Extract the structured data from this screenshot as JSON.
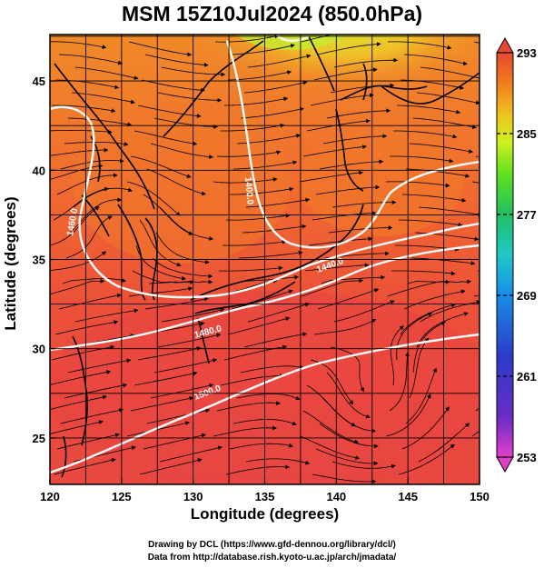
{
  "title": "MSM 15Z10Jul2024 (850.0hPa)",
  "x_axis": {
    "label": "Longitude (degrees)",
    "range": [
      120,
      150
    ],
    "ticks": [
      "120",
      "125",
      "130",
      "135",
      "140",
      "145",
      "150"
    ]
  },
  "y_axis": {
    "label": "Latitude  (degrees)",
    "range": [
      22.4,
      47.6
    ],
    "ticks": [
      "25",
      "30",
      "35",
      "40",
      "45"
    ]
  },
  "colorbar": {
    "range": [
      253,
      293
    ],
    "ticks": [
      "293",
      "285",
      "277",
      "269",
      "261",
      "253"
    ],
    "colors": [
      "#e040c8",
      "#6a2cc8",
      "#2a3cc8",
      "#1a8ce8",
      "#20c8c8",
      "#20c060",
      "#60e020",
      "#d0f020",
      "#f0c020",
      "#f07820",
      "#e84830"
    ]
  },
  "contours": [
    {
      "label": "1500.0"
    },
    {
      "label": "1480.0"
    },
    {
      "label": "1440.0"
    },
    {
      "label": "1460.0"
    },
    {
      "label": "1400.0"
    }
  ],
  "credits": {
    "line1": "Drawing by DCL (https://www.gfd-dennou.org/library/dcl/)",
    "line2": "Data from http://database.rish.kyoto-u.ac.jp/arch/jmadata/"
  }
}
